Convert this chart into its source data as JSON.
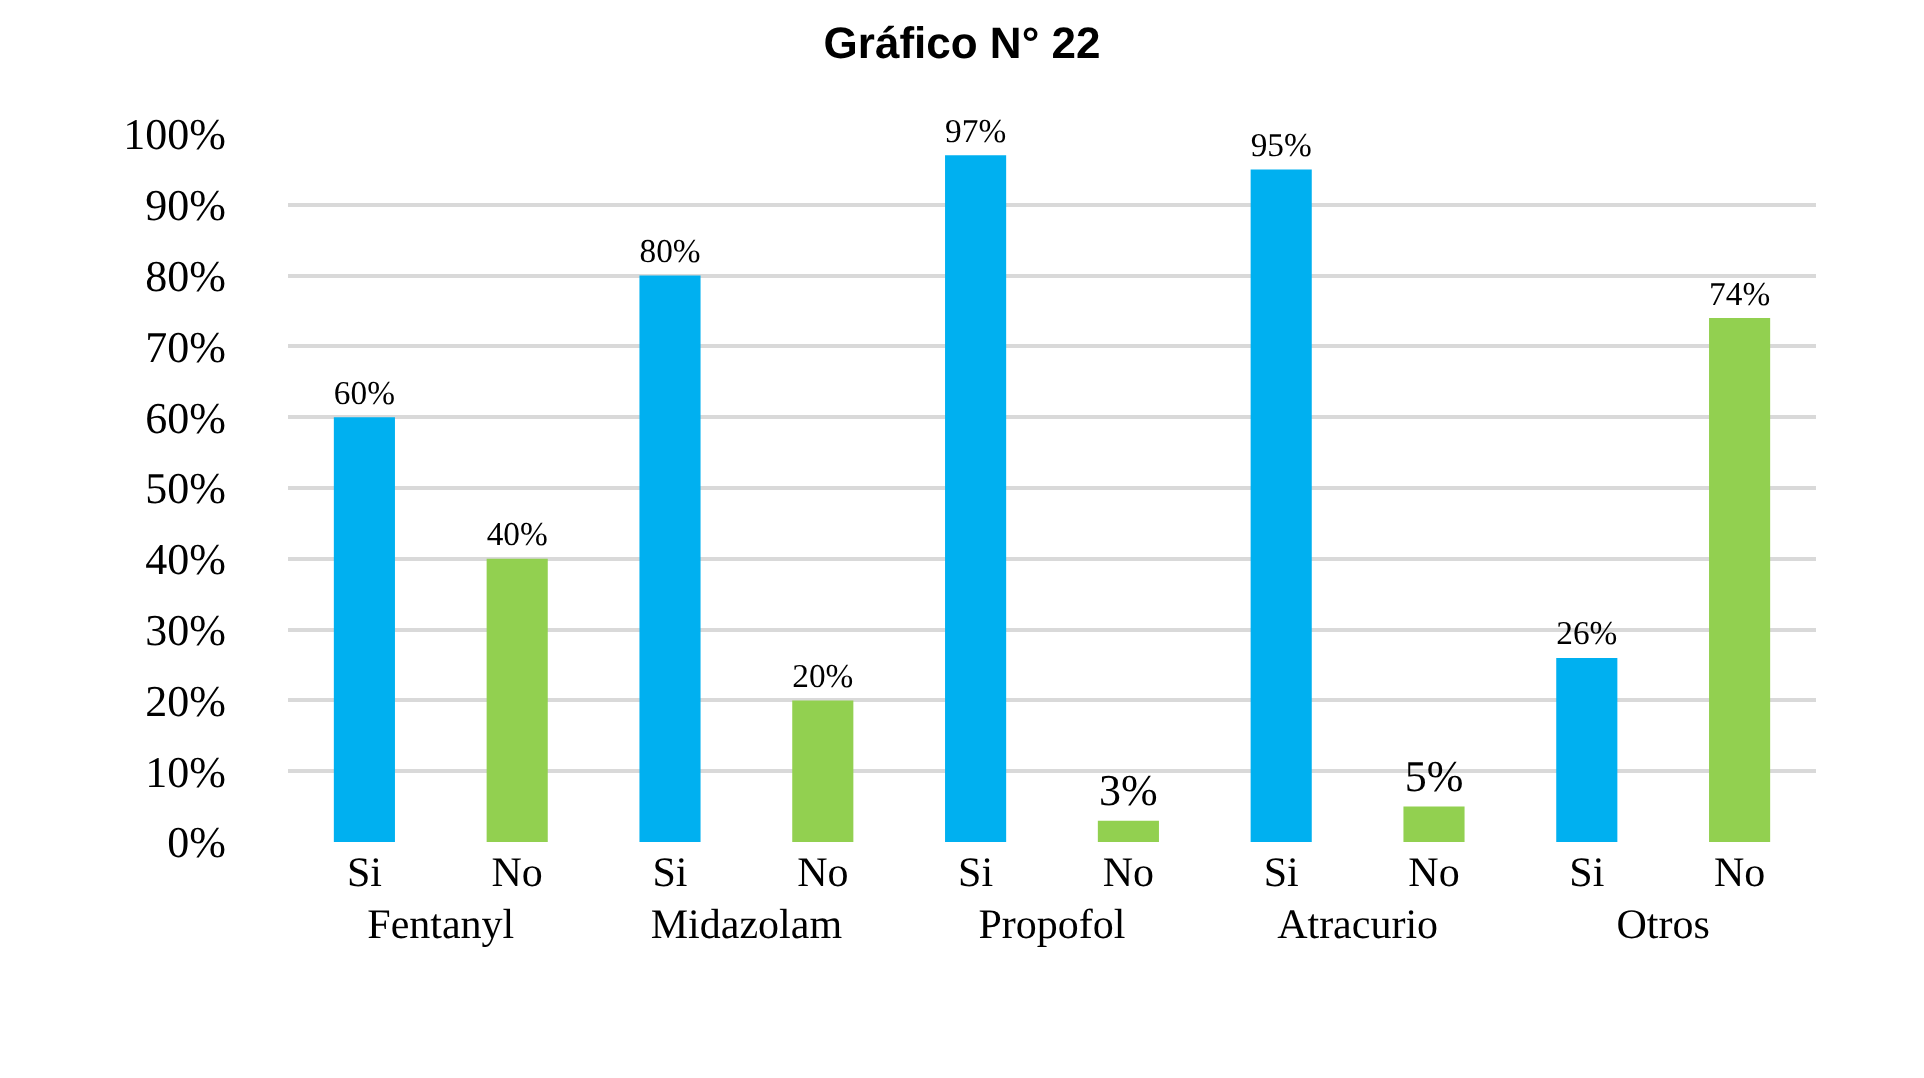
{
  "chart_data": {
    "type": "bar",
    "title": "Gráfico N° 22",
    "categories": [
      "Fentanyl",
      "Midazolam",
      "Propofol",
      "Atracurio",
      "Otros"
    ],
    "series": [
      {
        "name": "Si",
        "color": "#00b0f0",
        "values": [
          60,
          80,
          97,
          95,
          26
        ],
        "value_labels": [
          "60%",
          "80%",
          "97%",
          "95%",
          "26%"
        ]
      },
      {
        "name": "No",
        "color": "#92d050",
        "values": [
          40,
          20,
          3,
          5,
          74
        ],
        "value_labels": [
          "40%",
          "20%",
          "3%",
          "5%",
          "74%"
        ]
      }
    ],
    "ylim": [
      0,
      100
    ],
    "yticks": [
      {
        "value": 0,
        "label": "0%"
      },
      {
        "value": 10,
        "label": "10%"
      },
      {
        "value": 20,
        "label": "20%"
      },
      {
        "value": 30,
        "label": "30%"
      },
      {
        "value": 40,
        "label": "40%"
      },
      {
        "value": 50,
        "label": "50%"
      },
      {
        "value": 60,
        "label": "60%"
      },
      {
        "value": 70,
        "label": "70%"
      },
      {
        "value": 80,
        "label": "80%"
      },
      {
        "value": 90,
        "label": "90%"
      },
      {
        "value": 100,
        "label": "100%"
      }
    ],
    "grid": "y"
  }
}
